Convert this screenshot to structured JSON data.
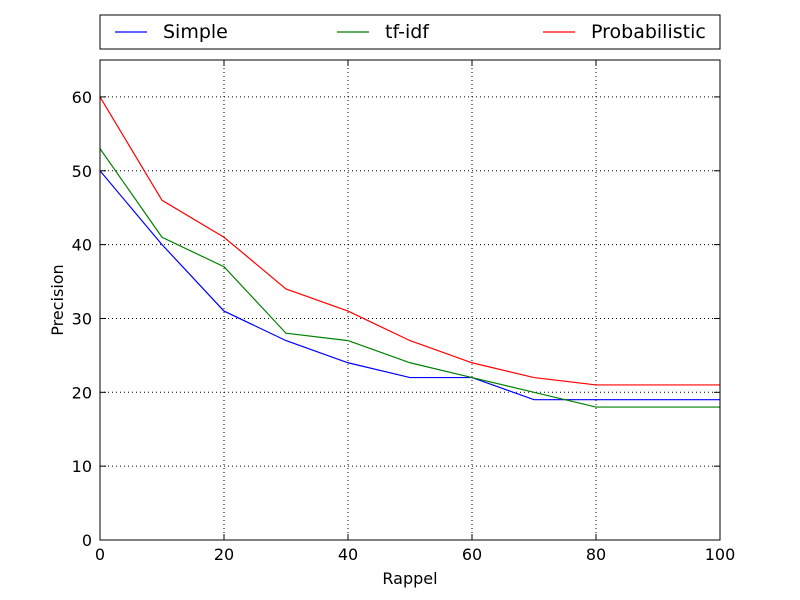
{
  "chart_data": {
    "type": "line",
    "title": "",
    "xlabel": "Rappel",
    "ylabel": "Precision",
    "xlim": [
      0,
      100
    ],
    "ylim": [
      0,
      65
    ],
    "xticks": [
      0,
      20,
      40,
      60,
      80,
      100
    ],
    "yticks": [
      0,
      10,
      20,
      30,
      40,
      50,
      60
    ],
    "grid": true,
    "legend_position": "top",
    "x": [
      0,
      10,
      20,
      30,
      40,
      50,
      60,
      70,
      80,
      90,
      100
    ],
    "series": [
      {
        "name": "Simple",
        "color": "#0000ff",
        "values": [
          50,
          40,
          31,
          27,
          24,
          22,
          22,
          19,
          19,
          19,
          19
        ]
      },
      {
        "name": "tf-idf",
        "color": "#008000",
        "values": [
          53,
          41,
          37,
          28,
          27,
          24,
          22,
          20,
          18,
          18,
          18
        ]
      },
      {
        "name": "Probabilistic",
        "color": "#ff0000",
        "values": [
          60,
          46,
          41,
          34,
          31,
          27,
          24,
          22,
          21,
          21,
          21
        ]
      }
    ]
  }
}
